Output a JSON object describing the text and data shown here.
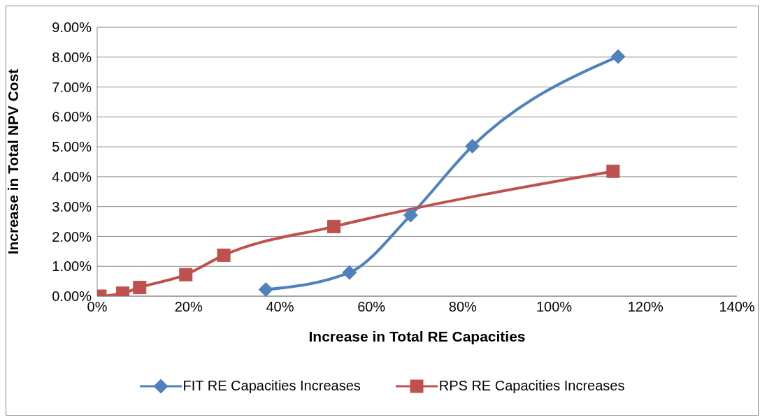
{
  "chart_data": {
    "type": "line",
    "xlabel": "Increase in Total RE Capacities",
    "ylabel": "Increase in Total NPV Cost",
    "xlim": [
      0,
      140
    ],
    "xticks": [
      {
        "value": 0,
        "label": "0%"
      },
      {
        "value": 20,
        "label": "20%"
      },
      {
        "value": 40,
        "label": "40%"
      },
      {
        "value": 60,
        "label": "60%"
      },
      {
        "value": 80,
        "label": "80%"
      },
      {
        "value": 100,
        "label": "100%"
      },
      {
        "value": 120,
        "label": "120%"
      },
      {
        "value": 140,
        "label": "140%"
      }
    ],
    "ylim": [
      0,
      9
    ],
    "yticks": [
      {
        "value": 0,
        "label": "0.00%"
      },
      {
        "value": 1,
        "label": "1.00%"
      },
      {
        "value": 2,
        "label": "2.00%"
      },
      {
        "value": 3,
        "label": "3.00%"
      },
      {
        "value": 4,
        "label": "4.00%"
      },
      {
        "value": 5,
        "label": "5.00%"
      },
      {
        "value": 6,
        "label": "6.00%"
      },
      {
        "value": 7,
        "label": "7.00%"
      },
      {
        "value": 8,
        "label": "8.00%"
      },
      {
        "value": 9,
        "label": "9.00%"
      }
    ],
    "grid": "y",
    "legend": "bottom",
    "line_style": "solid",
    "series": [
      {
        "name": "FIT RE Capacities Increases",
        "color": "#4f81bd",
        "marker": "diamond",
        "x": [
          36.9,
          55.2,
          68.6,
          82.1,
          114.0
        ],
        "values": [
          0.22,
          0.79,
          2.71,
          5.02,
          8.02
        ]
      },
      {
        "name": "RPS RE Capacities Increases",
        "color": "#c0504d",
        "marker": "square",
        "x": [
          0.6,
          5.6,
          9.3,
          19.4,
          27.7,
          51.8,
          112.9
        ],
        "values": [
          0,
          0.1,
          0.29,
          0.72,
          1.37,
          2.33,
          4.18
        ]
      }
    ]
  }
}
